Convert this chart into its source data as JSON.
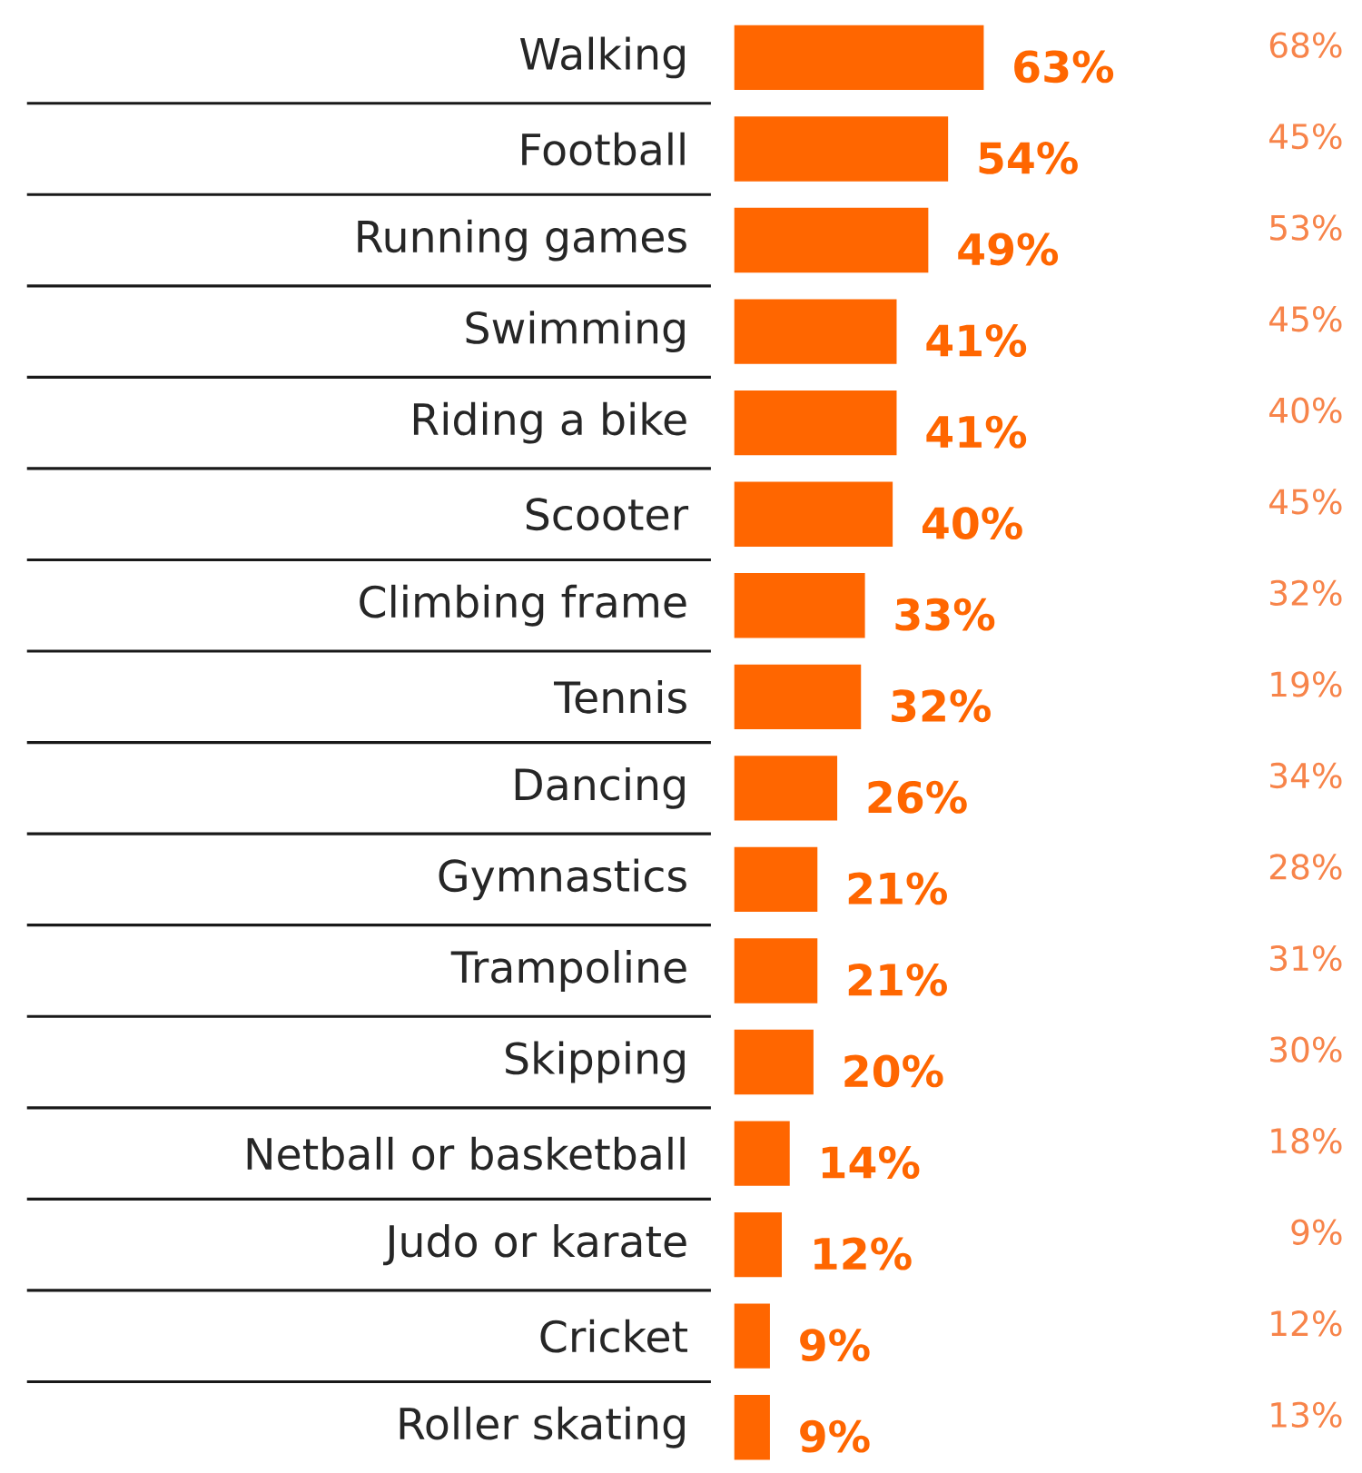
{
  "chart_data": {
    "type": "bar",
    "orientation": "horizontal",
    "categories": [
      "Walking",
      "Football",
      "Running games",
      "Swimming",
      "Riding a bike",
      "Scooter",
      "Climbing frame",
      "Tennis",
      "Dancing",
      "Gymnastics",
      "Trampoline",
      "Skipping",
      "Netball or basketball",
      "Judo or karate",
      "Cricket",
      "Roller skating"
    ],
    "series": [
      {
        "color": "#ff6600",
        "values": [
          63,
          54,
          49,
          41,
          41,
          40,
          33,
          32,
          26,
          21,
          21,
          20,
          14,
          12,
          9,
          9
        ],
        "value_labels": [
          "63%",
          "54%",
          "49%",
          "41%",
          "41%",
          "40%",
          "33%",
          "32%",
          "26%",
          "21%",
          "21%",
          "20%",
          "14%",
          "12%",
          "9%",
          "9%"
        ]
      }
    ],
    "annotations": [
      "68%",
      "45%",
      "53%",
      "45%",
      "40%",
      "45%",
      "32%",
      "19%",
      "34%",
      "28%",
      "31%",
      "30%",
      "18%",
      "9%",
      "12%",
      "13%"
    ]
  }
}
